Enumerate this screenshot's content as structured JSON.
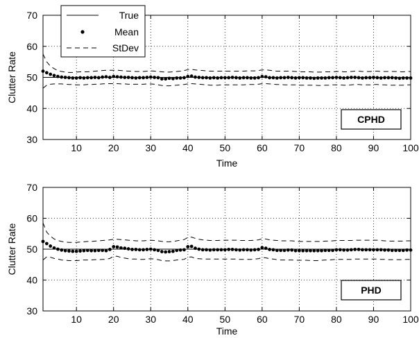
{
  "chart_data": [
    {
      "type": "line",
      "xlabel": "Time",
      "ylabel": "Clutter Rate",
      "xlim": [
        1,
        100
      ],
      "ylim": [
        30,
        70
      ],
      "xticks": [
        10,
        20,
        30,
        40,
        50,
        60,
        70,
        80,
        90,
        100
      ],
      "yticks": [
        30,
        40,
        50,
        60,
        70
      ],
      "grid": true,
      "annotation": "CPHD",
      "legend": {
        "placement": "top-left",
        "entries": [
          "True",
          "Mean",
          "StDev"
        ]
      },
      "series": [
        {
          "name": "True",
          "style": "solid",
          "x": [
            1,
            100
          ],
          "values": [
            50,
            50
          ]
        },
        {
          "name": "Mean",
          "style": "dots",
          "values": [
            52.0,
            51.5,
            51.0,
            50.6,
            50.3,
            50.1,
            50.0,
            49.9,
            49.8,
            49.8,
            49.9,
            49.8,
            49.9,
            49.9,
            50.0,
            49.9,
            50.1,
            50.2,
            50.0,
            50.3,
            50.2,
            50.1,
            50.0,
            50.0,
            49.9,
            49.8,
            49.9,
            49.9,
            50.0,
            50.1,
            50.0,
            49.9,
            49.5,
            49.5,
            49.7,
            49.6,
            49.8,
            49.8,
            49.9,
            50.3,
            50.4,
            50.1,
            50.0,
            49.9,
            49.9,
            49.8,
            49.9,
            49.8,
            49.9,
            49.9,
            49.9,
            50.0,
            49.9,
            49.8,
            49.9,
            49.9,
            49.8,
            49.8,
            49.9,
            50.3,
            50.2,
            49.9,
            49.9,
            49.8,
            49.9,
            49.9,
            50.0,
            49.9,
            49.8,
            49.9,
            49.9,
            49.8,
            49.8,
            49.7,
            49.8,
            49.8,
            49.8,
            49.9,
            49.9,
            50.0,
            49.9,
            49.8,
            49.9,
            50.0,
            50.0,
            49.9,
            49.8,
            49.9,
            49.9,
            50.0,
            49.9,
            49.8,
            49.9,
            49.9,
            49.9,
            49.8,
            49.7,
            49.8,
            49.8,
            49.8
          ]
        },
        {
          "name": "StDev",
          "style": "dashed",
          "upper": [
            57.5,
            55.0,
            53.6,
            52.8,
            52.2,
            51.9,
            51.7,
            51.6,
            51.6,
            51.7,
            51.8,
            51.8,
            51.8,
            51.9,
            52.0,
            52.1,
            52.2,
            52.3,
            52.3,
            52.3,
            52.3,
            52.2,
            52.1,
            52.0,
            52.0,
            51.9,
            51.9,
            51.9,
            52.0,
            52.1,
            52.0,
            51.9,
            51.8,
            51.7,
            51.7,
            51.8,
            51.9,
            52.0,
            52.2,
            52.5,
            52.6,
            52.4,
            52.3,
            52.2,
            52.1,
            52.0,
            52.0,
            52.0,
            52.0,
            52.0,
            52.0,
            52.0,
            52.0,
            52.0,
            52.0,
            52.1,
            52.1,
            52.1,
            52.2,
            52.4,
            52.4,
            52.3,
            52.1,
            52.0,
            52.0,
            52.0,
            52.0,
            52.0,
            51.9,
            51.8,
            51.8,
            51.8,
            51.8,
            51.7,
            51.7,
            51.7,
            51.8,
            51.8,
            51.8,
            51.9,
            51.9,
            51.8,
            51.8,
            51.9,
            52.0,
            52.0,
            51.9,
            51.9,
            51.9,
            52.0,
            52.0,
            51.9,
            51.9,
            51.9,
            51.9,
            51.9,
            51.8,
            51.8,
            51.9,
            51.9
          ],
          "lower": [
            46.5,
            47.5,
            47.8,
            47.9,
            47.9,
            47.9,
            47.8,
            47.7,
            47.7,
            47.6,
            47.6,
            47.6,
            47.7,
            47.7,
            47.8,
            47.8,
            47.9,
            48.0,
            48.0,
            48.0,
            48.0,
            47.9,
            47.9,
            47.8,
            47.8,
            47.8,
            47.8,
            47.8,
            47.9,
            47.9,
            47.8,
            47.6,
            47.4,
            47.3,
            47.3,
            47.4,
            47.5,
            47.6,
            47.7,
            47.9,
            48.0,
            47.9,
            47.8,
            47.7,
            47.6,
            47.5,
            47.5,
            47.5,
            47.6,
            47.6,
            47.6,
            47.6,
            47.6,
            47.6,
            47.6,
            47.7,
            47.7,
            47.7,
            47.8,
            48.0,
            48.0,
            47.9,
            47.8,
            47.7,
            47.7,
            47.6,
            47.6,
            47.6,
            47.6,
            47.5,
            47.5,
            47.5,
            47.5,
            47.5,
            47.4,
            47.4,
            47.5,
            47.5,
            47.6,
            47.6,
            47.6,
            47.5,
            47.5,
            47.6,
            47.7,
            47.7,
            47.6,
            47.6,
            47.6,
            47.7,
            47.7,
            47.6,
            47.6,
            47.5,
            47.5,
            47.5,
            47.5,
            47.5,
            47.6,
            47.6
          ]
        }
      ]
    },
    {
      "type": "line",
      "xlabel": "Time",
      "ylabel": "Clutter Rate",
      "xlim": [
        1,
        100
      ],
      "ylim": [
        30,
        70
      ],
      "xticks": [
        10,
        20,
        30,
        40,
        50,
        60,
        70,
        80,
        90,
        100
      ],
      "yticks": [
        30,
        40,
        50,
        60,
        70
      ],
      "grid": true,
      "annotation": "PHD",
      "series": [
        {
          "name": "True",
          "style": "solid",
          "x": [
            1,
            100
          ],
          "values": [
            50,
            50
          ]
        },
        {
          "name": "Mean",
          "style": "dots",
          "values": [
            52.5,
            51.8,
            51.0,
            50.4,
            50.0,
            49.7,
            49.5,
            49.4,
            49.3,
            49.3,
            49.4,
            49.5,
            49.6,
            49.5,
            49.5,
            49.6,
            49.6,
            49.5,
            49.9,
            50.8,
            50.7,
            50.4,
            50.3,
            50.1,
            49.9,
            49.9,
            49.8,
            49.8,
            49.9,
            50.0,
            49.8,
            49.6,
            49.2,
            49.1,
            49.2,
            49.3,
            49.6,
            49.7,
            49.8,
            50.8,
            50.9,
            50.3,
            50.0,
            49.8,
            49.8,
            49.7,
            49.8,
            49.8,
            49.8,
            49.8,
            49.9,
            49.9,
            49.8,
            49.7,
            49.8,
            49.8,
            49.7,
            49.8,
            49.9,
            50.5,
            50.3,
            49.9,
            49.8,
            49.6,
            49.6,
            49.6,
            49.7,
            49.7,
            49.5,
            49.5,
            49.5,
            49.5,
            49.5,
            49.5,
            49.5,
            49.5,
            49.6,
            49.6,
            49.6,
            49.8,
            49.8,
            49.7,
            49.7,
            49.8,
            49.9,
            49.9,
            49.8,
            49.8,
            49.8,
            49.8,
            49.8,
            49.8,
            49.7,
            49.7,
            49.6,
            49.6,
            49.6,
            49.6,
            49.7,
            49.7
          ]
        },
        {
          "name": "StDev",
          "style": "dashed",
          "upper": [
            58.5,
            55.5,
            54.2,
            53.3,
            52.8,
            52.5,
            52.3,
            52.2,
            52.2,
            52.2,
            52.3,
            52.4,
            52.5,
            52.5,
            52.6,
            52.7,
            52.8,
            52.9,
            53.0,
            53.2,
            53.2,
            53.1,
            53.0,
            52.9,
            52.8,
            52.7,
            52.7,
            52.7,
            52.8,
            52.9,
            52.8,
            52.7,
            52.5,
            52.4,
            52.4,
            52.5,
            52.7,
            52.9,
            53.1,
            53.8,
            53.9,
            53.5,
            53.2,
            53.0,
            52.9,
            52.8,
            52.8,
            52.8,
            52.9,
            52.9,
            52.9,
            52.9,
            52.9,
            52.8,
            52.8,
            52.8,
            52.8,
            52.9,
            53.0,
            53.4,
            53.3,
            53.0,
            52.9,
            52.8,
            52.7,
            52.7,
            52.7,
            52.7,
            52.6,
            52.5,
            52.5,
            52.5,
            52.5,
            52.5,
            52.5,
            52.5,
            52.6,
            52.6,
            52.7,
            52.8,
            52.8,
            52.8,
            52.8,
            52.8,
            52.9,
            52.9,
            52.9,
            52.9,
            52.9,
            52.9,
            52.9,
            52.8,
            52.7,
            52.6,
            52.6,
            52.6,
            52.6,
            52.6,
            52.7,
            52.7
          ],
          "lower": [
            46.5,
            47.5,
            47.4,
            47.0,
            46.8,
            46.5,
            46.4,
            46.3,
            46.3,
            46.3,
            46.4,
            46.5,
            46.5,
            46.5,
            46.6,
            46.6,
            46.7,
            46.7,
            47.0,
            47.7,
            47.7,
            47.3,
            47.1,
            46.9,
            46.8,
            46.8,
            46.7,
            46.7,
            46.8,
            46.9,
            46.8,
            46.6,
            46.3,
            46.2,
            46.2,
            46.3,
            46.5,
            46.6,
            46.7,
            47.4,
            47.5,
            47.0,
            46.9,
            46.8,
            46.8,
            46.8,
            46.8,
            46.8,
            46.8,
            46.8,
            46.8,
            46.8,
            46.8,
            46.7,
            46.7,
            46.7,
            46.7,
            46.8,
            46.9,
            47.3,
            47.2,
            46.9,
            46.8,
            46.6,
            46.5,
            46.5,
            46.5,
            46.5,
            46.4,
            46.4,
            46.4,
            46.4,
            46.3,
            46.3,
            46.3,
            46.4,
            46.5,
            46.5,
            46.6,
            46.7,
            46.7,
            46.7,
            46.7,
            46.7,
            46.8,
            46.8,
            46.8,
            46.8,
            46.8,
            46.8,
            46.8,
            46.7,
            46.7,
            46.6,
            46.6,
            46.6,
            46.6,
            46.6,
            46.7,
            46.7
          ]
        }
      ]
    }
  ]
}
